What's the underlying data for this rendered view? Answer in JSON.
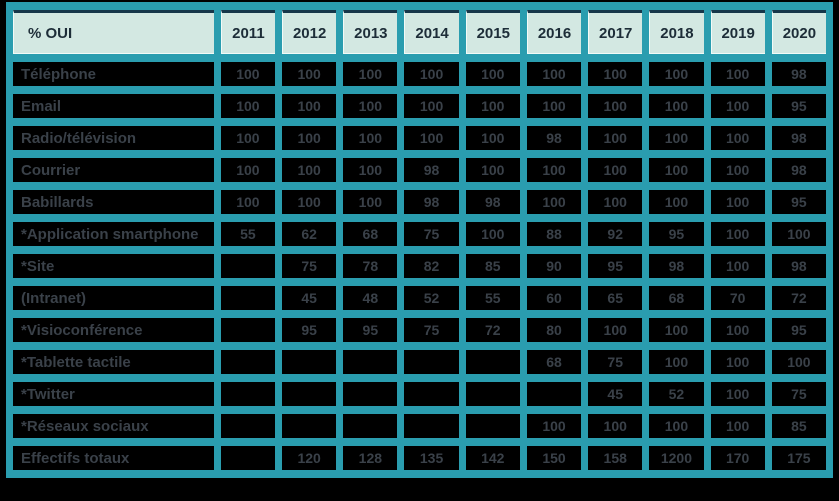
{
  "header": {
    "label": "% OUI",
    "years": [
      "2011",
      "2012",
      "2013",
      "2014",
      "2015",
      "2016",
      "2017",
      "2018",
      "2019",
      "2020"
    ]
  },
  "rows": [
    {
      "label": "Téléphone",
      "values": [
        "100",
        "100",
        "100",
        "100",
        "100",
        "100",
        "100",
        "100",
        "100",
        "98"
      ]
    },
    {
      "label": "Email",
      "values": [
        "100",
        "100",
        "100",
        "100",
        "100",
        "100",
        "100",
        "100",
        "100",
        "95"
      ]
    },
    {
      "label": "Radio/télévision",
      "values": [
        "100",
        "100",
        "100",
        "100",
        "100",
        "98",
        "100",
        "100",
        "100",
        "98"
      ]
    },
    {
      "label": "Courrier",
      "values": [
        "100",
        "100",
        "100",
        "98",
        "100",
        "100",
        "100",
        "100",
        "100",
        "98"
      ]
    },
    {
      "label": "Babillards",
      "values": [
        "100",
        "100",
        "100",
        "98",
        "98",
        "100",
        "100",
        "100",
        "100",
        "95"
      ]
    },
    {
      "label": "*Application smartphone",
      "values": [
        "55",
        "62",
        "68",
        "75",
        "100",
        "88",
        "92",
        "95",
        "100",
        "100"
      ]
    },
    {
      "label": "*Site",
      "values": [
        "",
        "75",
        "78",
        "82",
        "85",
        "90",
        "95",
        "98",
        "100",
        "98"
      ]
    },
    {
      "label": "(Intranet)",
      "values": [
        "",
        "45",
        "48",
        "52",
        "55",
        "60",
        "65",
        "68",
        "70",
        "72"
      ]
    },
    {
      "label": "*Visioconférence",
      "values": [
        "",
        "95",
        "95",
        "75",
        "72",
        "80",
        "100",
        "100",
        "100",
        "95"
      ]
    },
    {
      "label": "*Tablette tactile",
      "values": [
        "",
        "",
        "",
        "",
        "",
        "68",
        "75",
        "100",
        "100",
        "100"
      ]
    },
    {
      "label": "*Twitter",
      "values": [
        "",
        "",
        "",
        "",
        "",
        "",
        "45",
        "52",
        "100",
        "75"
      ]
    },
    {
      "label": "*Réseaux sociaux",
      "values": [
        "",
        "",
        "",
        "",
        "",
        "100",
        "100",
        "100",
        "100",
        "85"
      ]
    },
    {
      "label": "Effectifs totaux",
      "values": [
        "",
        "120",
        "128",
        "135",
        "142",
        "150",
        "158",
        "1200",
        "170",
        "175"
      ]
    }
  ],
  "colors": {
    "grid_teal": "#2a9daf",
    "header_mint": "#d3e8e2",
    "cell_background": "#000000",
    "cell_text": "#3a4149",
    "header_text": "#1d2d38",
    "header_top_border": "#16374a",
    "page_background": "#000000"
  }
}
